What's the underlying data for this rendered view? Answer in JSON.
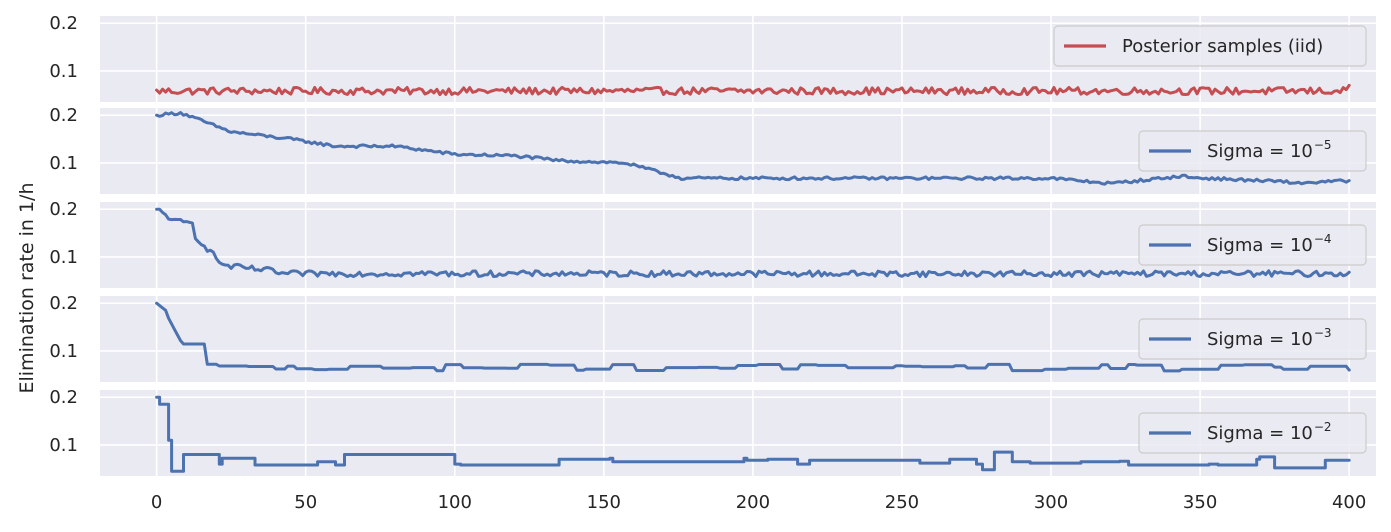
{
  "colors": {
    "red_series": "#c44e52",
    "blue_series": "#4c72b0",
    "panel_background": "#eaeaf2",
    "grid": "#ffffff",
    "text": "#262626"
  },
  "chart_data": {
    "type": "line",
    "layout": "stacked-panels-shared-x",
    "ylabel": "Elimination rate in 1/h",
    "xlabel": "",
    "xlim": [
      -19,
      409
    ],
    "x_ticks": [
      0,
      50,
      100,
      150,
      200,
      250,
      300,
      350,
      400
    ],
    "grid": true,
    "panels": [
      {
        "ylim": [
          0.035,
          0.215
        ],
        "y_ticks": [
          0.1,
          0.2
        ],
        "legend": {
          "label": "Posterior samples (iid)",
          "label_base": "",
          "label_sup": "",
          "placement": "top-right"
        },
        "series": {
          "style": "iid",
          "color": "#c44e52",
          "x_start": 0,
          "x_end": 400,
          "n": 401,
          "segments": [
            {
              "x0": 0,
              "x1": 400,
              "y0": 0.058,
              "y1": 0.058
            }
          ],
          "noise": {
            "amplitude": 0.0075,
            "min": 0.046,
            "max": 0.079
          },
          "y_start": 0.06,
          "y_end": 0.07
        }
      },
      {
        "ylim": [
          0.035,
          0.215
        ],
        "y_ticks": [
          0.1,
          0.2
        ],
        "legend": {
          "label": "",
          "label_base": "Sigma = 10",
          "label_sup": "−5",
          "placement": "center-right"
        },
        "series": {
          "style": "walk",
          "color": "#4c72b0",
          "x_start": 0,
          "x_end": 400,
          "n": 401,
          "segments": [
            {
              "x0": 0,
              "x1": 8,
              "y0": 0.2,
              "y1": 0.205
            },
            {
              "x0": 8,
              "x1": 25,
              "y0": 0.205,
              "y1": 0.165
            },
            {
              "x0": 25,
              "x1": 45,
              "y0": 0.165,
              "y1": 0.15
            },
            {
              "x0": 45,
              "x1": 60,
              "y0": 0.15,
              "y1": 0.135
            },
            {
              "x0": 60,
              "x1": 80,
              "y0": 0.135,
              "y1": 0.135
            },
            {
              "x0": 80,
              "x1": 100,
              "y0": 0.135,
              "y1": 0.118
            },
            {
              "x0": 100,
              "x1": 120,
              "y0": 0.118,
              "y1": 0.115
            },
            {
              "x0": 120,
              "x1": 135,
              "y0": 0.115,
              "y1": 0.105
            },
            {
              "x0": 135,
              "x1": 157,
              "y0": 0.105,
              "y1": 0.1
            },
            {
              "x0": 157,
              "x1": 175,
              "y0": 0.1,
              "y1": 0.07
            },
            {
              "x0": 175,
              "x1": 300,
              "y0": 0.068,
              "y1": 0.068
            },
            {
              "x0": 300,
              "x1": 320,
              "y0": 0.068,
              "y1": 0.057
            },
            {
              "x0": 320,
              "x1": 345,
              "y0": 0.057,
              "y1": 0.073
            },
            {
              "x0": 345,
              "x1": 380,
              "y0": 0.07,
              "y1": 0.06
            },
            {
              "x0": 380,
              "x1": 400,
              "y0": 0.057,
              "y1": 0.063
            }
          ],
          "noise": {
            "amplitude": 0.003
          },
          "y_start": 0.2,
          "y_end": 0.063
        }
      },
      {
        "ylim": [
          0.035,
          0.215
        ],
        "y_ticks": [
          0.1,
          0.2
        ],
        "legend": {
          "label": "",
          "label_base": "Sigma = 10",
          "label_sup": "−4",
          "placement": "center-right"
        },
        "series": {
          "style": "walk",
          "color": "#4c72b0",
          "x_start": 0,
          "x_end": 400,
          "n": 401,
          "segments": [
            {
              "x0": 0,
              "x1": 5,
              "y0": 0.2,
              "y1": 0.18
            },
            {
              "x0": 5,
              "x1": 12,
              "y0": 0.175,
              "y1": 0.17
            },
            {
              "x0": 12,
              "x1": 22,
              "y0": 0.15,
              "y1": 0.085
            },
            {
              "x0": 22,
              "x1": 40,
              "y0": 0.082,
              "y1": 0.07
            },
            {
              "x0": 40,
              "x1": 400,
              "y0": 0.065,
              "y1": 0.065
            }
          ],
          "noise": {
            "amplitude": 0.006
          },
          "y_start": 0.2,
          "y_end": 0.068
        }
      },
      {
        "ylim": [
          0.035,
          0.215
        ],
        "y_ticks": [
          0.1,
          0.2
        ],
        "legend": {
          "label": "",
          "label_base": "Sigma = 10",
          "label_sup": "−3",
          "placement": "center-right"
        },
        "series": {
          "style": "step",
          "color": "#4c72b0",
          "x_start": 0,
          "x_end": 400,
          "n": 401,
          "segments": [
            {
              "x0": 0,
              "x1": 3,
              "y0": 0.2,
              "y1": 0.185
            },
            {
              "x0": 3,
              "x1": 9,
              "y0": 0.18,
              "y1": 0.11
            },
            {
              "x0": 9,
              "x1": 400,
              "y0": 0.065,
              "y1": 0.065
            }
          ],
          "noise": {
            "amplitude": 0.007,
            "hold_min": 3,
            "hold_max": 12
          },
          "y_start": 0.2,
          "y_end": 0.06
        }
      },
      {
        "ylim": [
          0.035,
          0.215
        ],
        "y_ticks": [
          0.1,
          0.2
        ],
        "legend": {
          "label": "",
          "label_base": "Sigma = 10",
          "label_sup": "−2",
          "placement": "center-right"
        },
        "series": {
          "style": "explicit",
          "color": "#4c72b0",
          "x_start": 0,
          "x_end": 400,
          "steps": [
            [
              0,
              0.2
            ],
            [
              1,
              0.185
            ],
            [
              3,
              0.185
            ],
            [
              4,
              0.11
            ],
            [
              5,
              0.045
            ],
            [
              9,
              0.08
            ],
            [
              21,
              0.06
            ],
            [
              22,
              0.072
            ],
            [
              33,
              0.058
            ],
            [
              54,
              0.065
            ],
            [
              60,
              0.058
            ],
            [
              63,
              0.08
            ],
            [
              100,
              0.06
            ],
            [
              102,
              0.058
            ],
            [
              135,
              0.07
            ],
            [
              152,
              0.072
            ],
            [
              153,
              0.065
            ],
            [
              197,
              0.072
            ],
            [
              198,
              0.068
            ],
            [
              205,
              0.07
            ],
            [
              215,
              0.06
            ],
            [
              219,
              0.068
            ],
            [
              256,
              0.062
            ],
            [
              266,
              0.07
            ],
            [
              275,
              0.06
            ],
            [
              277,
              0.048
            ],
            [
              281,
              0.085
            ],
            [
              287,
              0.065
            ],
            [
              293,
              0.062
            ],
            [
              310,
              0.065
            ],
            [
              323,
              0.066
            ],
            [
              326,
              0.058
            ],
            [
              353,
              0.06
            ],
            [
              356,
              0.058
            ],
            [
              369,
              0.07
            ],
            [
              370,
              0.075
            ],
            [
              375,
              0.052
            ],
            [
              392,
              0.068
            ],
            [
              400,
              0.068
            ]
          ],
          "y_start": 0.2,
          "y_end": 0.068
        }
      }
    ]
  }
}
